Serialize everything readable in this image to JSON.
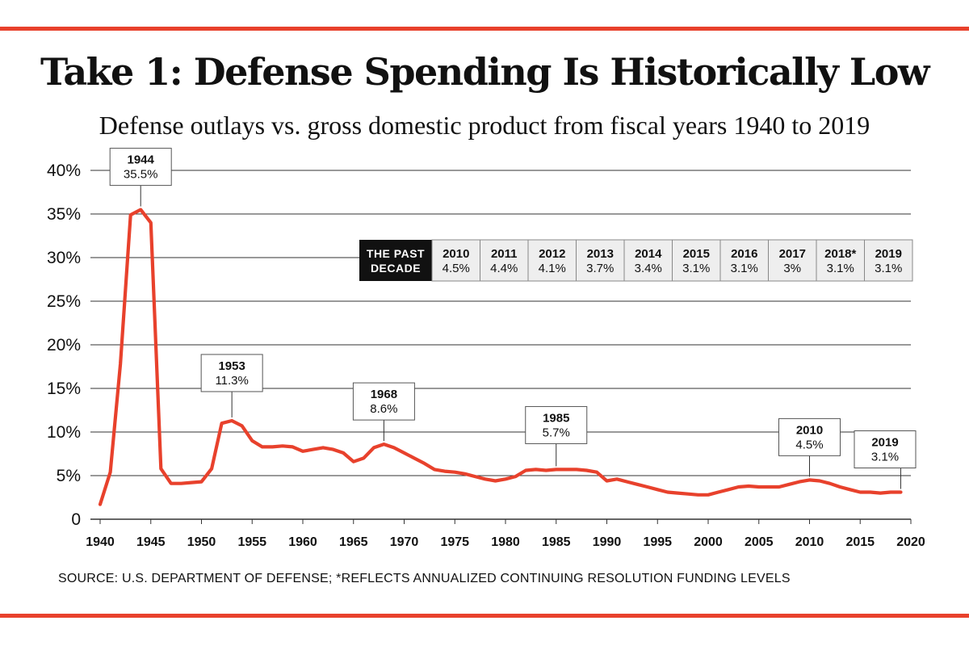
{
  "title": "Take 1: Defense Spending Is Historically Low",
  "subtitle": "Defense outlays vs. gross domestic product from fiscal years 1940 to 2019",
  "source": "SOURCE: U.S. DEPARTMENT OF DEFENSE; *REFLECTS ANNUALIZED CONTINUING RESOLUTION FUNDING LEVELS",
  "colors": {
    "line": "#e8412c",
    "rule": "#e8412c",
    "grid": "#333333",
    "table_bg": "#eeeeee",
    "decade_bg": "#111111"
  },
  "chart_data": {
    "type": "line",
    "title": "Take 1: Defense Spending Is Historically Low",
    "xlabel": "",
    "ylabel": "",
    "xlim": [
      1940,
      2020
    ],
    "ylim": [
      0,
      40
    ],
    "x_ticks": [
      1940,
      1945,
      1950,
      1955,
      1960,
      1965,
      1970,
      1975,
      1980,
      1985,
      1990,
      1995,
      2000,
      2005,
      2010,
      2015,
      2020
    ],
    "y_ticks": [
      {
        "value": 0,
        "label": "0"
      },
      {
        "value": 5,
        "label": "5%"
      },
      {
        "value": 10,
        "label": "10%"
      },
      {
        "value": 15,
        "label": "15%"
      },
      {
        "value": 20,
        "label": "20%"
      },
      {
        "value": 25,
        "label": "25%"
      },
      {
        "value": 30,
        "label": "30%"
      },
      {
        "value": 35,
        "label": "35%"
      },
      {
        "value": 40,
        "label": "40%"
      }
    ],
    "series": [
      {
        "name": "Defense outlays as % of GDP",
        "x": [
          1940,
          1941,
          1942,
          1943,
          1944,
          1945,
          1946,
          1947,
          1948,
          1949,
          1950,
          1951,
          1952,
          1953,
          1954,
          1955,
          1956,
          1957,
          1958,
          1959,
          1960,
          1961,
          1962,
          1963,
          1964,
          1965,
          1966,
          1967,
          1968,
          1969,
          1970,
          1971,
          1972,
          1973,
          1974,
          1975,
          1976,
          1977,
          1978,
          1979,
          1980,
          1981,
          1982,
          1983,
          1984,
          1985,
          1986,
          1987,
          1988,
          1989,
          1990,
          1991,
          1992,
          1993,
          1994,
          1995,
          1996,
          1997,
          1998,
          1999,
          2000,
          2001,
          2002,
          2003,
          2004,
          2005,
          2006,
          2007,
          2008,
          2009,
          2010,
          2011,
          2012,
          2013,
          2014,
          2015,
          2016,
          2017,
          2018,
          2019
        ],
        "values": [
          1.7,
          5.4,
          17.8,
          34.9,
          35.5,
          34.0,
          5.8,
          4.1,
          4.1,
          4.2,
          4.3,
          5.8,
          11.0,
          11.3,
          10.7,
          9.0,
          8.3,
          8.3,
          8.4,
          8.3,
          7.8,
          8.0,
          8.2,
          8.0,
          7.6,
          6.6,
          7.0,
          8.2,
          8.6,
          8.2,
          7.6,
          7.0,
          6.4,
          5.7,
          5.5,
          5.4,
          5.2,
          4.9,
          4.6,
          4.4,
          4.6,
          4.9,
          5.6,
          5.7,
          5.6,
          5.7,
          5.7,
          5.7,
          5.6,
          5.4,
          4.4,
          4.6,
          4.3,
          4.0,
          3.7,
          3.4,
          3.1,
          3.0,
          2.9,
          2.8,
          2.8,
          3.1,
          3.4,
          3.7,
          3.8,
          3.7,
          3.7,
          3.7,
          4.0,
          4.3,
          4.5,
          4.4,
          4.1,
          3.7,
          3.4,
          3.1,
          3.1,
          3.0,
          3.1,
          3.1
        ]
      }
    ],
    "annotations": [
      {
        "year": "1944",
        "value": "35.5%",
        "x": 1944,
        "y": 35.5
      },
      {
        "year": "1953",
        "value": "11.3%",
        "x": 1953,
        "y": 11.3
      },
      {
        "year": "1968",
        "value": "8.6%",
        "x": 1968,
        "y": 8.6
      },
      {
        "year": "1985",
        "value": "5.7%",
        "x": 1985,
        "y": 5.7
      },
      {
        "year": "2010",
        "value": "4.5%",
        "x": 2010,
        "y": 4.5
      },
      {
        "year": "2019",
        "value": "3.1%",
        "x": 2019,
        "y": 3.1
      }
    ],
    "past_decade_table": {
      "header": [
        "THE PAST",
        "DECADE"
      ],
      "columns": [
        {
          "year": "2010",
          "value": "4.5%"
        },
        {
          "year": "2011",
          "value": "4.4%"
        },
        {
          "year": "2012",
          "value": "4.1%"
        },
        {
          "year": "2013",
          "value": "3.7%"
        },
        {
          "year": "2014",
          "value": "3.4%"
        },
        {
          "year": "2015",
          "value": "3.1%"
        },
        {
          "year": "2016",
          "value": "3.1%"
        },
        {
          "year": "2017",
          "value": "3%"
        },
        {
          "year": "2018*",
          "value": "3.1%"
        },
        {
          "year": "2019",
          "value": "3.1%"
        }
      ]
    }
  }
}
